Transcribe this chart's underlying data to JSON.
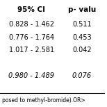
{
  "header": [
    "95% CI",
    "p- valu"
  ],
  "rows": [
    [
      "0.828 - 1.462",
      "0.511"
    ],
    [
      "0.776 - 1.764",
      "0.453"
    ],
    [
      "1.017 - 2.581",
      "0.042"
    ],
    [
      "",
      ""
    ],
    [
      "0.980 - 1.489",
      "0.076"
    ]
  ],
  "italic_rows": [
    4
  ],
  "footer_text": "posed to methyl-bromide).OR>",
  "background_color": "#ffffff",
  "header_fontsize": 7.5,
  "row_fontsize": 7.0,
  "footer_fontsize": 5.5
}
